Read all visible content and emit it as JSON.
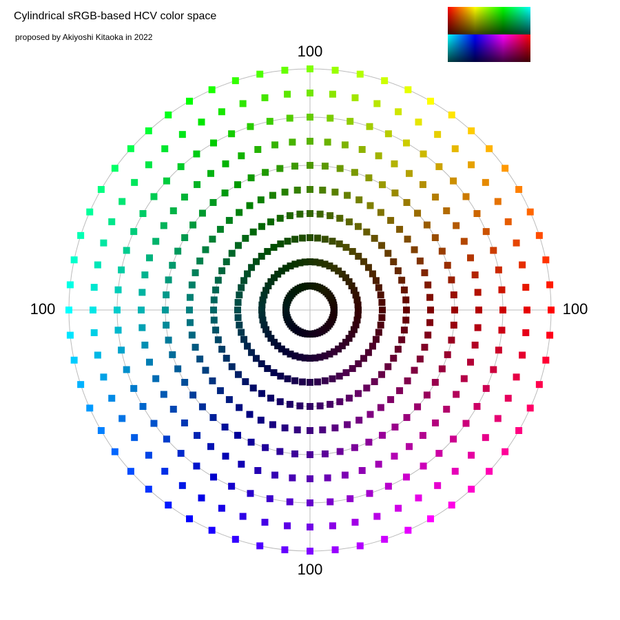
{
  "chart_data": {
    "type": "polar-scatter",
    "title": "Cylindrical sRGB-based HCV color space",
    "subtitle": "proposed by Akiyoshi Kitaoka in 2022",
    "rlim": [
      0,
      100
    ],
    "rticks": [
      20,
      40,
      60,
      80,
      100
    ],
    "grid": true,
    "points_per_ring": 60,
    "rings": [
      10,
      20,
      30,
      40,
      50,
      60,
      70,
      80,
      90,
      100
    ]
  }
}
